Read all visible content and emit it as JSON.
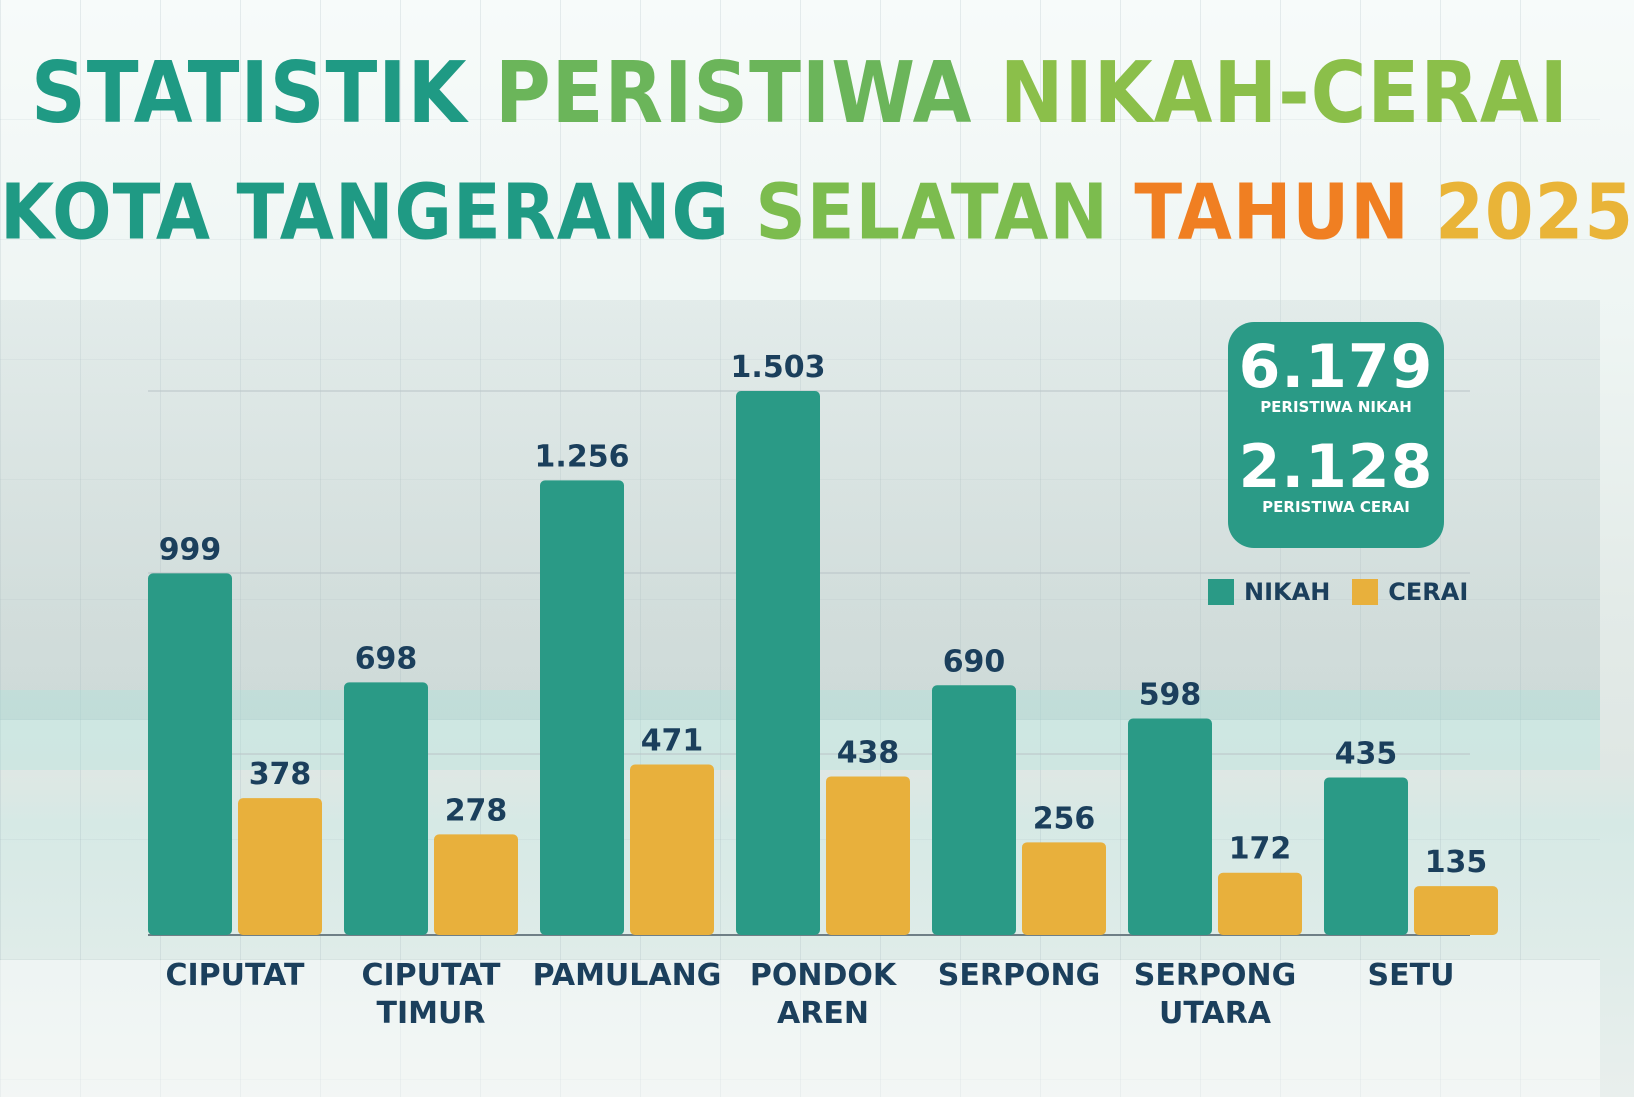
{
  "title": {
    "line1": [
      {
        "text": "STATISTIK ",
        "tone": "teal"
      },
      {
        "text": "PERISTIWA ",
        "tone": "green"
      },
      {
        "text": "NIKAH-CERAI",
        "tone": "lgreen"
      }
    ],
    "line2": [
      {
        "text": "KOTA TANGERANG ",
        "tone": "teal"
      },
      {
        "text": "SELATAN ",
        "tone": "ltgreen"
      },
      {
        "text": "TAHUN ",
        "tone": "orange"
      },
      {
        "text": "2025",
        "tone": "yellow"
      }
    ]
  },
  "summary": {
    "nikah_total": "6.179",
    "nikah_label": "PERISTIWA NIKAH",
    "cerai_total": "2.128",
    "cerai_label": "PERISTIWA CERAI"
  },
  "legend": [
    {
      "label": "NIKAH",
      "color": "#2a9a86"
    },
    {
      "label": "CERAI",
      "color": "#e8b03c"
    }
  ],
  "chart_data": {
    "type": "bar",
    "categories": [
      "CIPUTAT",
      "CIPUTAT TIMUR",
      "PAMULANG",
      "PONDOK AREN",
      "SERPONG",
      "SERPONG UTARA",
      "SETU"
    ],
    "category_lines": [
      [
        "CIPUTAT"
      ],
      [
        "CIPUTAT",
        "TIMUR"
      ],
      [
        "PAMULANG"
      ],
      [
        "PONDOK",
        "AREN"
      ],
      [
        "SERPONG"
      ],
      [
        "SERPONG",
        "UTARA"
      ],
      [
        "SETU"
      ]
    ],
    "series": [
      {
        "name": "NIKAH",
        "color": "#2a9a86",
        "values": [
          999,
          698,
          1256,
          1503,
          690,
          598,
          435
        ],
        "labels": [
          "999",
          "698",
          "1.256",
          "1.503",
          "690",
          "598",
          "435"
        ]
      },
      {
        "name": "CERAI",
        "color": "#e8b03c",
        "values": [
          378,
          278,
          471,
          438,
          256,
          172,
          135
        ],
        "labels": [
          "378",
          "278",
          "471",
          "438",
          "256",
          "172",
          "135"
        ]
      }
    ],
    "ylim": [
      0,
      1503
    ],
    "gridlines": [
      0,
      500,
      1000,
      1503
    ],
    "grid": true,
    "legend_position": "top-right"
  }
}
